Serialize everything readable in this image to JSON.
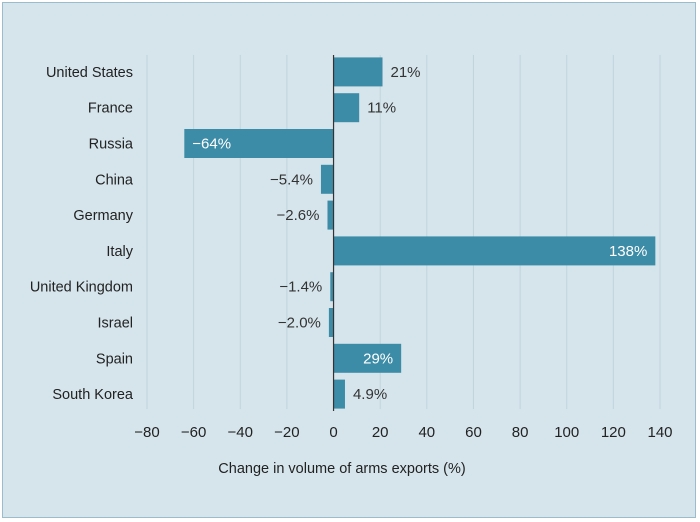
{
  "chart_data": {
    "type": "bar",
    "orientation": "horizontal",
    "categories": [
      "United States",
      "France",
      "Russia",
      "China",
      "Germany",
      "Italy",
      "United Kingdom",
      "Israel",
      "Spain",
      "South Korea"
    ],
    "values": [
      21,
      11,
      -64,
      -5.4,
      -2.6,
      138,
      -1.4,
      -2.0,
      29,
      4.9
    ],
    "value_labels": [
      "21%",
      "11%",
      "−64%",
      "−5.4%",
      "−2.6%",
      "138%",
      "−1.4%",
      "−2.0%",
      "29%",
      "4.9%"
    ],
    "xlabel": "Change in volume of arms exports (%)",
    "xlim": [
      -80,
      140
    ],
    "xticks": [
      -80,
      -60,
      -40,
      -20,
      0,
      20,
      40,
      60,
      80,
      100,
      120,
      140
    ],
    "xtick_labels": [
      "−80",
      "−60",
      "−40",
      "−20",
      "0",
      "20",
      "40",
      "60",
      "80",
      "100",
      "120",
      "140"
    ],
    "grid": "vertical",
    "bar_color": "#3d8ca7",
    "background_color": "#d6e5ec"
  }
}
